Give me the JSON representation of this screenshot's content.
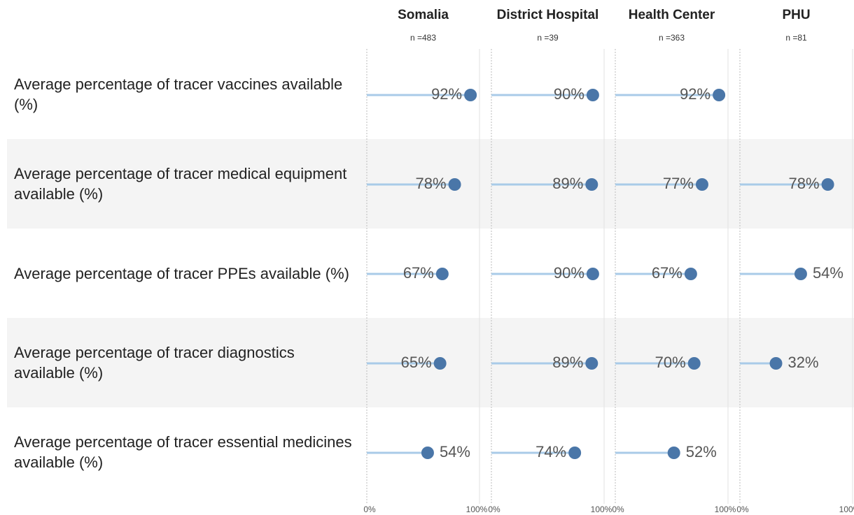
{
  "chart_data": {
    "type": "lollipop",
    "categories": [
      "Average percentage of tracer vaccines available (%)",
      "Average percentage of tracer medical equipment available (%)",
      "Average percentage of tracer PPEs available (%)",
      "Average percentage of tracer diagnostics available (%)",
      "Average percentage of tracer essential medicines available (%)"
    ],
    "series": [
      {
        "name": "Somalia",
        "subtitle": "n =483",
        "values": [
          92,
          78,
          67,
          65,
          54
        ],
        "value_labels": [
          "92%",
          "78%",
          "67%",
          "65%",
          "54%"
        ]
      },
      {
        "name": "District Hospital",
        "subtitle": "n =39",
        "values": [
          90,
          89,
          90,
          89,
          74
        ],
        "value_labels": [
          "90%",
          "89%",
          "90%",
          "89%",
          "74%"
        ]
      },
      {
        "name": "Health Center",
        "subtitle": "n =363",
        "values": [
          92,
          77,
          67,
          70,
          52
        ],
        "value_labels": [
          "92%",
          "77%",
          "67%",
          "70%",
          "52%"
        ]
      },
      {
        "name": "PHU",
        "subtitle": "n =81",
        "values": [
          null,
          78,
          54,
          32,
          null
        ],
        "value_labels": [
          null,
          "78%",
          "54%",
          "32%",
          null
        ]
      }
    ],
    "xlim": [
      0,
      100
    ],
    "xticks": [
      {
        "value": 0,
        "label": "0%"
      },
      {
        "value": 100,
        "label": "100%"
      }
    ],
    "color": "#4a76a8",
    "stem_color": "#a9cbe8"
  }
}
